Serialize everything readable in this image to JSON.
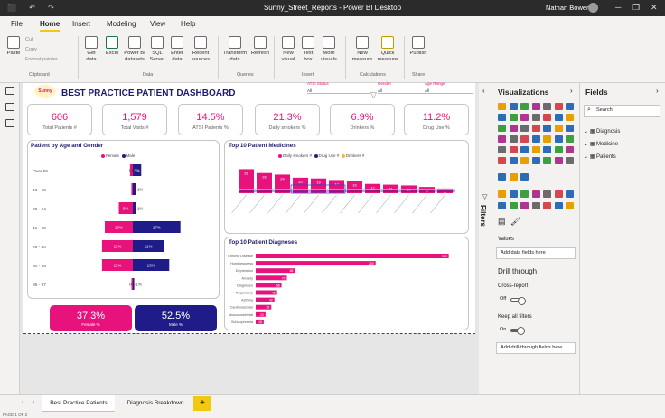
{
  "window": {
    "title": "Sunny_Street_Reports - Power BI Desktop",
    "user": "Nathan Bowen",
    "controls": [
      "─",
      "❐",
      "✕"
    ]
  },
  "menu": [
    "File",
    "Home",
    "Insert",
    "Modeling",
    "View",
    "Help"
  ],
  "ribbon": {
    "clipboard": {
      "paste": "Paste",
      "cut": "Cut",
      "copy": "Copy",
      "format_painter": "Format painter",
      "group": "Clipboard"
    },
    "data": {
      "get_data": "Get data",
      "excel": "Excel",
      "pbi_datasets": "Power BI datasets",
      "sql": "SQL Server",
      "enter_data": "Enter data",
      "recent": "Recent sources",
      "group": "Data"
    },
    "queries": {
      "transform": "Transform data",
      "refresh": "Refresh",
      "group": "Queries"
    },
    "insert": {
      "new_visual": "New visual",
      "text_box": "Text box",
      "more_visuals": "More visuals",
      "group": "Insert"
    },
    "calculations": {
      "new_measure": "New measure",
      "quick_measure": "Quick measure",
      "group": "Calculations"
    },
    "share": {
      "publish": "Publish",
      "group": "Share"
    }
  },
  "report": {
    "logo_text": "Sunny",
    "title": "BEST PRACTICE PATIENT DASHBOARD",
    "slicers": [
      {
        "label": "ATSI Status",
        "value": "All"
      },
      {
        "label": "Gender",
        "value": "All"
      },
      {
        "label": "Age Range",
        "value": "All"
      }
    ],
    "kpis": [
      {
        "value": "606",
        "label": "Total Patients #"
      },
      {
        "value": "1,579",
        "label": "Total Visits #"
      },
      {
        "value": "14.5%",
        "label": "ATSI Patients %"
      },
      {
        "value": "21.3%",
        "label": "Daily smokers %"
      },
      {
        "value": "6.9%",
        "label": "Drinkers %"
      },
      {
        "value": "11.2%",
        "label": "Drug Use %"
      }
    ],
    "pyramid": {
      "title": "Patient by Age and Gender",
      "legend": [
        "Female",
        "Male"
      ],
      "colors": {
        "female": "#e8127c",
        "male": "#1f1c8a"
      },
      "rows": [
        {
          "age": "Over 65",
          "female": 1,
          "male": 3,
          "female_label": "1%",
          "male_label": "3%"
        },
        {
          "age": "16 - 19",
          "female": 0.5,
          "male": 1,
          "female_label": "",
          "male_label": "1%"
        },
        {
          "age": "20 - 24",
          "female": 5,
          "male": 1,
          "female_label": "5%",
          "male_label": "1%"
        },
        {
          "age": "41 - 50",
          "female": 10,
          "male": 17,
          "female_label": "10%",
          "male_label": "17%"
        },
        {
          "age": "26 - 40",
          "female": 11,
          "male": 11,
          "female_label": "11%",
          "male_label": "11%"
        },
        {
          "age": "60 - 59",
          "female": 11,
          "male": 13,
          "female_label": "11%",
          "male_label": "13%"
        },
        {
          "age": "86 - 97",
          "female": 0.3,
          "male": 0.5,
          "female_label": "0%",
          "male_label": "1%"
        }
      ]
    },
    "medicines": {
      "title": "Top 10 Patient Medicines",
      "legend": [
        "Daily smokers #",
        "Drug Use #",
        "Drinkers #"
      ]
    },
    "diagnoses": {
      "title": "Top 10 Patient Diagnoses",
      "bar_color": "#e8127c"
    },
    "bottom_kpis": [
      {
        "value": "37.3%",
        "label": "Female %"
      },
      {
        "value": "52.5%",
        "label": "Male %"
      }
    ]
  },
  "chart_data": [
    {
      "type": "bar",
      "title": "Patient by Age and Gender",
      "categories": [
        "Over 65",
        "16 - 19",
        "20 - 24",
        "41 - 50",
        "26 - 40",
        "60 - 59",
        "86 - 97"
      ],
      "series": [
        {
          "name": "Female",
          "values": [
            1,
            0.5,
            5,
            10,
            11,
            11,
            0.3
          ]
        },
        {
          "name": "Male",
          "values": [
            3,
            1,
            1,
            17,
            11,
            13,
            0.5
          ]
        }
      ],
      "orientation": "horizontal-pyramid"
    },
    {
      "type": "bar",
      "title": "Top 10 Patient Medicines",
      "categories": [
        "",
        "",
        "",
        "",
        "",
        "",
        "",
        "",
        "",
        "",
        "",
        ""
      ],
      "series": [
        {
          "name": "Daily smokers #",
          "values": [
            31,
            26,
            24,
            20,
            19,
            17,
            16,
            12,
            11,
            10,
            8,
            6
          ]
        }
      ],
      "data_labels": [
        "31",
        "26",
        "24",
        "20",
        "19",
        "17",
        "16",
        "12",
        "11",
        "10",
        "8",
        "6"
      ],
      "ylim": [
        0,
        35
      ]
    },
    {
      "type": "bar",
      "title": "Top 10 Patient Diagnoses",
      "orientation": "horizontal",
      "categories": [
        "Chronic Disease",
        "Homelessness",
        "Depression",
        "Anxiety",
        "Diagnoses",
        "Respiratory",
        "Asthma",
        "Cardiovascular",
        "Musculoskeletal",
        "Schizophrenia"
      ],
      "values": [
        433,
        269,
        88,
        70,
        58,
        48,
        42,
        35,
        22,
        18
      ],
      "xlim": [
        0,
        450
      ]
    }
  ],
  "panes": {
    "filters_label": "Filters",
    "visualizations": {
      "title": "Visualizations",
      "values_label": "Values",
      "values_placeholder": "Add data fields here",
      "drillthrough_title": "Drill through",
      "cross_report": "Cross-report",
      "cross_report_state": "Off",
      "keep_filters": "Keep all filters",
      "keep_filters_state": "On",
      "drill_placeholder": "Add drill-through fields here"
    },
    "fields": {
      "title": "Fields",
      "search_placeholder": "Search",
      "tables": [
        "Diagnosis",
        "Medicine",
        "Patients"
      ]
    }
  },
  "tabs": [
    "Best Practice Patients",
    "Diagnosis Breakdown"
  ],
  "add_tab": "+",
  "status": "PAGE 1 OF 2"
}
